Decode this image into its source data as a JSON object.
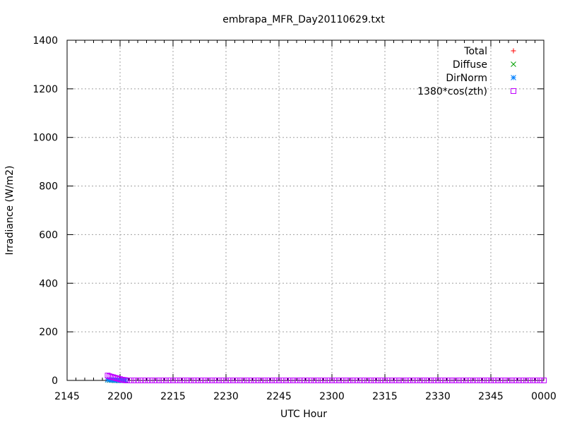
{
  "chart_data": {
    "type": "scatter",
    "title": "embrapa_MFR_Day20110629.txt",
    "xlabel": "UTC Hour",
    "ylabel": "Irradiance (W/m2)",
    "ylim": [
      0,
      1400
    ],
    "yticks": [
      0,
      200,
      400,
      600,
      800,
      1000,
      1200,
      1400
    ],
    "xlim_minutes": [
      0,
      135
    ],
    "xticks": [
      {
        "minute": 0,
        "label": "2145"
      },
      {
        "minute": 15,
        "label": "2200"
      },
      {
        "minute": 30,
        "label": "2215"
      },
      {
        "minute": 45,
        "label": "2230"
      },
      {
        "minute": 60,
        "label": "2245"
      },
      {
        "minute": 75,
        "label": "2300"
      },
      {
        "minute": 90,
        "label": "2315"
      },
      {
        "minute": 105,
        "label": "2330"
      },
      {
        "minute": 120,
        "label": "2345"
      },
      {
        "minute": 135,
        "label": "0000"
      }
    ],
    "grid": true,
    "legend_position": "top-right",
    "series": [
      {
        "name": "Total",
        "color": "#ff0000",
        "marker": "plus",
        "points": [
          [
            11.5,
            2
          ],
          [
            12.0,
            2
          ],
          [
            12.5,
            1
          ],
          [
            13.0,
            1
          ],
          [
            13.5,
            1
          ],
          [
            14.0,
            0
          ],
          [
            14.5,
            0
          ],
          [
            15.0,
            0
          ],
          [
            15.5,
            0
          ],
          [
            16.0,
            0
          ],
          [
            16.5,
            0
          ]
        ]
      },
      {
        "name": "Diffuse",
        "color": "#00a000",
        "marker": "cross",
        "points": [
          [
            11.5,
            2
          ],
          [
            12.0,
            1
          ],
          [
            12.5,
            1
          ],
          [
            13.0,
            1
          ],
          [
            13.5,
            0
          ],
          [
            14.0,
            0
          ],
          [
            14.5,
            0
          ],
          [
            15.0,
            0
          ],
          [
            15.5,
            0
          ],
          [
            16.0,
            0
          ],
          [
            16.5,
            0
          ]
        ]
      },
      {
        "name": "DirNorm",
        "color": "#0080ff",
        "marker": "star",
        "points": [
          [
            11.5,
            3
          ],
          [
            12.0,
            2
          ],
          [
            12.5,
            2
          ],
          [
            13.0,
            1
          ],
          [
            13.5,
            1
          ],
          [
            14.0,
            1
          ],
          [
            14.5,
            0
          ],
          [
            15.0,
            0
          ],
          [
            15.5,
            0
          ],
          [
            16.0,
            0
          ],
          [
            16.5,
            0
          ]
        ]
      },
      {
        "name": "1380*cos(zth)",
        "color": "#c000ff",
        "marker": "square",
        "points": [
          [
            11.5,
            20
          ],
          [
            12.0,
            17
          ],
          [
            12.5,
            15
          ],
          [
            13.0,
            13
          ],
          [
            13.5,
            11
          ],
          [
            14.0,
            9
          ],
          [
            14.5,
            7
          ],
          [
            15.0,
            5
          ],
          [
            15.5,
            3
          ],
          [
            16.0,
            2
          ],
          [
            16.5,
            1
          ],
          [
            17.0,
            0
          ],
          [
            18.0,
            0
          ],
          [
            19.0,
            0
          ],
          [
            20.0,
            0
          ],
          [
            21.0,
            0
          ],
          [
            22.0,
            0
          ],
          [
            23.0,
            0
          ],
          [
            24.0,
            0
          ],
          [
            25.0,
            0
          ],
          [
            26.0,
            0
          ],
          [
            27.0,
            0
          ],
          [
            28.0,
            0
          ],
          [
            29.0,
            0
          ],
          [
            30.0,
            0
          ],
          [
            31.0,
            0
          ],
          [
            32.0,
            0
          ],
          [
            33.0,
            0
          ],
          [
            34.0,
            0
          ],
          [
            35.0,
            0
          ],
          [
            36.0,
            0
          ],
          [
            37.0,
            0
          ],
          [
            38.0,
            0
          ],
          [
            39.0,
            0
          ],
          [
            40.0,
            0
          ],
          [
            41.0,
            0
          ],
          [
            42.0,
            0
          ],
          [
            43.0,
            0
          ],
          [
            44.0,
            0
          ],
          [
            45.0,
            0
          ],
          [
            46.0,
            0
          ],
          [
            47.0,
            0
          ],
          [
            48.0,
            0
          ],
          [
            49.0,
            0
          ],
          [
            50.0,
            0
          ],
          [
            51.0,
            0
          ],
          [
            52.0,
            0
          ],
          [
            53.0,
            0
          ],
          [
            54.0,
            0
          ],
          [
            55.0,
            0
          ],
          [
            56.0,
            0
          ],
          [
            57.0,
            0
          ],
          [
            58.0,
            0
          ],
          [
            59.0,
            0
          ],
          [
            60.0,
            0
          ],
          [
            61.0,
            0
          ],
          [
            62.0,
            0
          ],
          [
            63.0,
            0
          ],
          [
            64.0,
            0
          ],
          [
            65.0,
            0
          ],
          [
            66.0,
            0
          ],
          [
            67.0,
            0
          ],
          [
            68.0,
            0
          ],
          [
            69.0,
            0
          ],
          [
            70.0,
            0
          ],
          [
            71.0,
            0
          ],
          [
            72.0,
            0
          ],
          [
            73.0,
            0
          ],
          [
            74.0,
            0
          ],
          [
            75.0,
            0
          ],
          [
            76.0,
            0
          ],
          [
            77.0,
            0
          ],
          [
            78.0,
            0
          ],
          [
            79.0,
            0
          ],
          [
            80.0,
            0
          ],
          [
            81.0,
            0
          ],
          [
            82.0,
            0
          ],
          [
            83.0,
            0
          ],
          [
            84.0,
            0
          ],
          [
            85.0,
            0
          ],
          [
            86.0,
            0
          ],
          [
            87.0,
            0
          ],
          [
            88.0,
            0
          ],
          [
            89.0,
            0
          ],
          [
            90.0,
            0
          ],
          [
            91.0,
            0
          ],
          [
            92.0,
            0
          ],
          [
            93.0,
            0
          ],
          [
            94.0,
            0
          ],
          [
            95.0,
            0
          ],
          [
            96.0,
            0
          ],
          [
            97.0,
            0
          ],
          [
            98.0,
            0
          ],
          [
            99.0,
            0
          ],
          [
            100.0,
            0
          ],
          [
            101.0,
            0
          ],
          [
            102.0,
            0
          ],
          [
            103.0,
            0
          ],
          [
            104.0,
            0
          ],
          [
            105.0,
            0
          ],
          [
            106.0,
            0
          ],
          [
            107.0,
            0
          ],
          [
            108.0,
            0
          ],
          [
            109.0,
            0
          ],
          [
            110.0,
            0
          ],
          [
            111.0,
            0
          ],
          [
            112.0,
            0
          ],
          [
            113.0,
            0
          ],
          [
            114.0,
            0
          ],
          [
            115.0,
            0
          ],
          [
            116.0,
            0
          ],
          [
            117.0,
            0
          ],
          [
            118.0,
            0
          ],
          [
            119.0,
            0
          ],
          [
            120.0,
            0
          ],
          [
            121.0,
            0
          ],
          [
            122.0,
            0
          ],
          [
            123.0,
            0
          ],
          [
            124.0,
            0
          ],
          [
            125.0,
            0
          ],
          [
            126.0,
            0
          ],
          [
            127.0,
            0
          ],
          [
            128.0,
            0
          ],
          [
            129.0,
            0
          ],
          [
            130.0,
            0
          ],
          [
            131.0,
            0
          ],
          [
            132.0,
            0
          ],
          [
            133.0,
            0
          ],
          [
            134.0,
            0
          ],
          [
            135.0,
            0
          ]
        ]
      }
    ]
  }
}
